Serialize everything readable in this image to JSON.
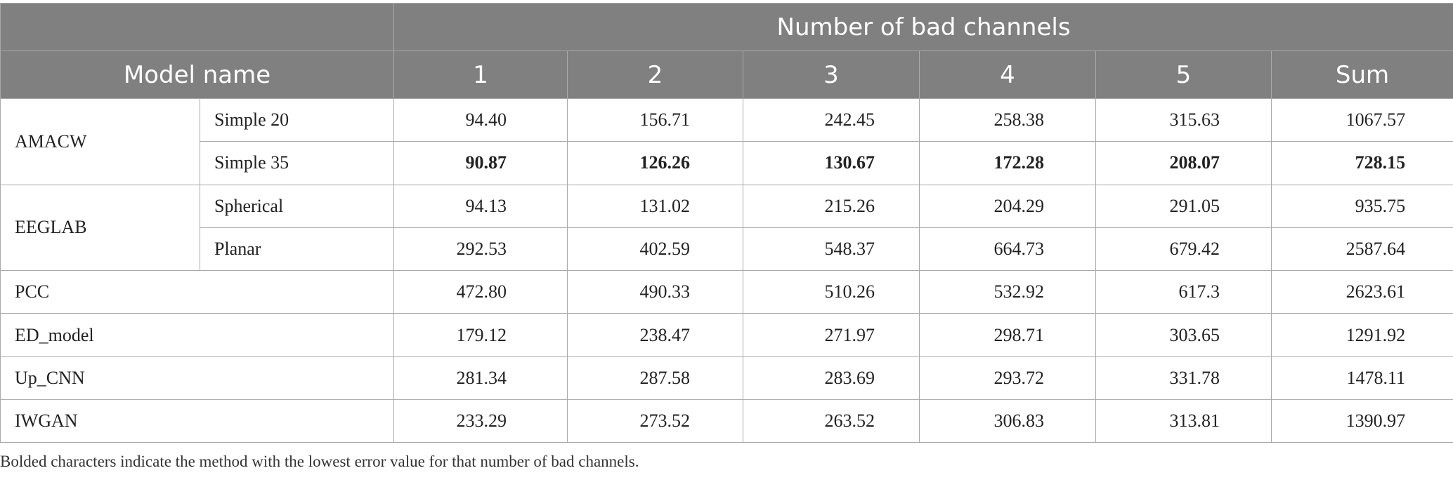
{
  "table": {
    "group_header": "Number of bad channels",
    "model_header": "Model name",
    "columns": [
      "1",
      "2",
      "3",
      "4",
      "5",
      "Sum"
    ],
    "rows": [
      {
        "model": "AMACW",
        "variant": "Simple 20",
        "values": [
          "94.40",
          "156.71",
          "242.45",
          "258.38",
          "315.63",
          "1067.57"
        ],
        "bold": false
      },
      {
        "model": "",
        "variant": "Simple 35",
        "values": [
          "90.87",
          "126.26",
          "130.67",
          "172.28",
          "208.07",
          "728.15"
        ],
        "bold": true
      },
      {
        "model": "EEGLAB",
        "variant": "Spherical",
        "values": [
          "94.13",
          "131.02",
          "215.26",
          "204.29",
          "291.05",
          "935.75"
        ],
        "bold": false
      },
      {
        "model": "",
        "variant": "Planar",
        "values": [
          "292.53",
          "402.59",
          "548.37",
          "664.73",
          "679.42",
          "2587.64"
        ],
        "bold": false
      },
      {
        "model": "PCC",
        "variant": "",
        "values": [
          "472.80",
          "490.33",
          "510.26",
          "532.92",
          "617.3",
          "2623.61"
        ],
        "bold": false
      },
      {
        "model": "ED_model",
        "variant": "",
        "values": [
          "179.12",
          "238.47",
          "271.97",
          "298.71",
          "303.65",
          "1291.92"
        ],
        "bold": false
      },
      {
        "model": "Up_CNN",
        "variant": "",
        "values": [
          "281.34",
          "287.58",
          "283.69",
          "293.72",
          "331.78",
          "1478.11"
        ],
        "bold": false
      },
      {
        "model": "IWGAN",
        "variant": "",
        "values": [
          "233.29",
          "273.52",
          "263.52",
          "306.83",
          "313.81",
          "1390.97"
        ],
        "bold": false
      }
    ]
  },
  "footnote": "Bolded characters indicate the method with the lowest error value for that number of bad channels.",
  "colors": {
    "header_bg": "#808080",
    "header_text": "#ffffff",
    "border": "#a9a9a9"
  }
}
